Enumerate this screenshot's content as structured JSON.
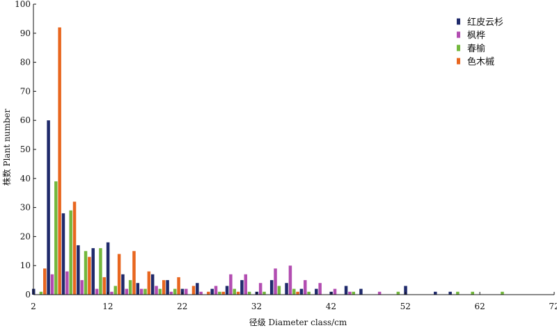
{
  "chart_data": {
    "type": "bar",
    "title": "",
    "xlabel": "径级 Diameter class/cm",
    "ylabel": "株数 Plant number",
    "xlim": [
      2,
      72
    ],
    "ylim": [
      0,
      100
    ],
    "x_ticks": [
      2,
      12,
      22,
      32,
      42,
      52,
      62,
      72
    ],
    "y_ticks": [
      0,
      10,
      20,
      30,
      40,
      50,
      60,
      70,
      80,
      90,
      100
    ],
    "legend_position": "top-right",
    "grid": false,
    "categories": [
      2,
      4,
      6,
      8,
      10,
      12,
      14,
      16,
      18,
      20,
      22,
      24,
      26,
      28,
      30,
      32,
      34,
      36,
      38,
      40,
      42,
      44,
      46,
      48,
      50,
      52,
      54,
      56,
      58,
      60,
      62,
      64,
      66,
      68,
      70
    ],
    "series": [
      {
        "name": "红皮云杉",
        "color": "#1f2a6b",
        "values": [
          2,
          60,
          28,
          17,
          16,
          18,
          7,
          4,
          7,
          5,
          2,
          4,
          2,
          3,
          5,
          1,
          5,
          4,
          2,
          2,
          1,
          3,
          2,
          0,
          0,
          3,
          0,
          1,
          1,
          0,
          0,
          0,
          0,
          0,
          0
        ]
      },
      {
        "name": "枫桦",
        "color": "#b24db1",
        "values": [
          0,
          7,
          8,
          5,
          2,
          1,
          2,
          2,
          3,
          1,
          2,
          1,
          3,
          7,
          7,
          4,
          9,
          10,
          5,
          4,
          2,
          1,
          0,
          1,
          0,
          0,
          0,
          0,
          0,
          0,
          0,
          0,
          0,
          0,
          0
        ]
      },
      {
        "name": "春榆",
        "color": "#73b83d",
        "values": [
          1,
          39,
          29,
          15,
          16,
          3,
          5,
          2,
          2,
          2,
          0,
          0,
          1,
          2,
          1,
          1,
          3,
          2,
          1,
          0,
          0,
          1,
          0,
          0,
          1,
          0,
          0,
          0,
          1,
          1,
          0,
          1,
          0,
          0,
          0
        ]
      },
      {
        "name": "色木槭",
        "color": "#e8661f",
        "values": [
          9,
          92,
          32,
          13,
          6,
          14,
          15,
          8,
          5,
          6,
          3,
          1,
          1,
          1,
          0,
          0,
          0,
          1,
          0,
          0,
          0,
          0,
          0,
          0,
          0,
          0,
          0,
          0,
          0,
          0,
          0,
          0,
          0,
          0,
          0
        ]
      }
    ]
  }
}
